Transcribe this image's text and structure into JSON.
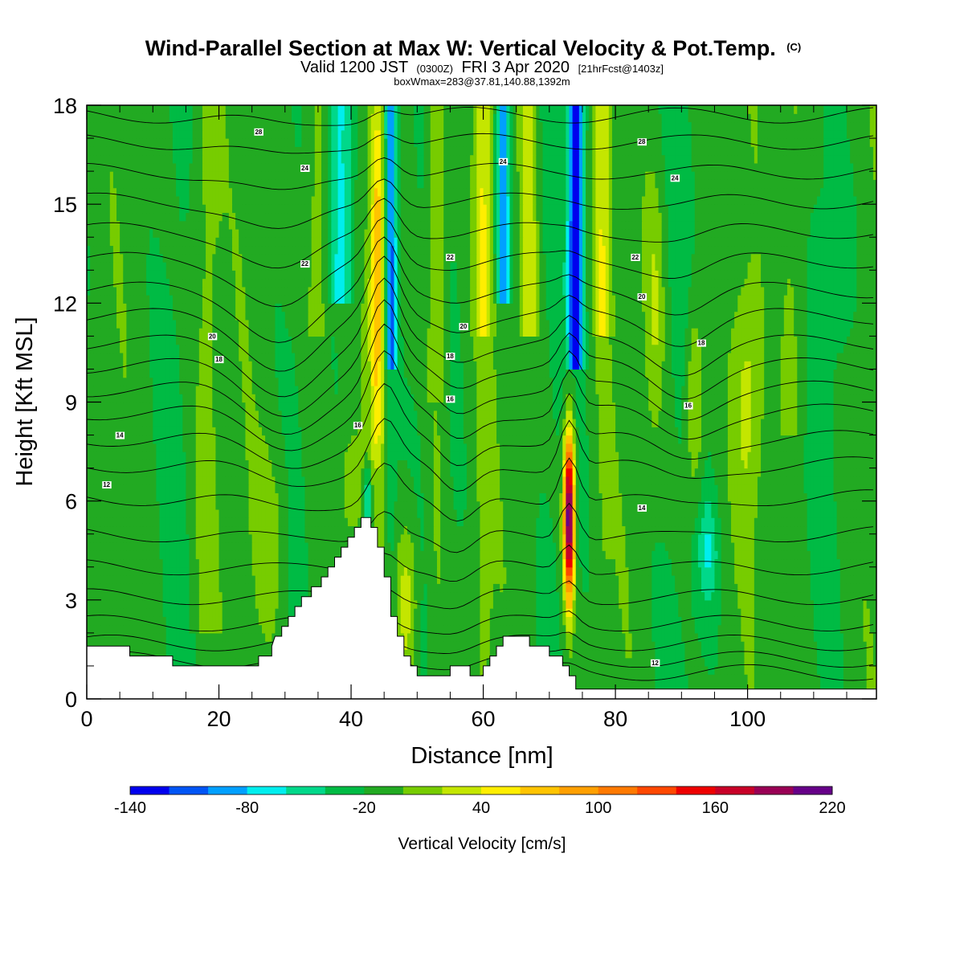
{
  "chart_data": {
    "type": "heatmap",
    "title": "Wind-Parallel Section at Max W: Vertical Velocity & Pot.Temp.",
    "title_mark": "(C)",
    "subtitle": {
      "part1": "Valid 1200 JST",
      "part2": "(0300Z)",
      "part3": "FRI 3 Apr 2020",
      "part4": "[21hrFcst@1403z]"
    },
    "subtitle2": "boxWmax=283@37.81,140.88,1392m",
    "xlabel": "Distance [nm]",
    "ylabel": "Height [Kft MSL]",
    "xlim": [
      0,
      119.5
    ],
    "ylim": [
      0,
      18
    ],
    "x_ticks": [
      0,
      20,
      40,
      60,
      80,
      100
    ],
    "y_ticks": [
      0,
      3,
      6,
      9,
      12,
      15,
      18
    ],
    "colorbar": {
      "title": "Vertical Velocity [cm/s]",
      "min": -140,
      "max": 220,
      "step": 20,
      "labels": [
        "-140",
        "-80",
        "-20",
        "40",
        "100",
        "160",
        "220"
      ],
      "colors": [
        "#0000ee",
        "#0055f5",
        "#00a0ff",
        "#00eeee",
        "#00d88a",
        "#00bb44",
        "#22aa22",
        "#77cc00",
        "#c4e600",
        "#ffee00",
        "#ffc400",
        "#ffa000",
        "#ff7a00",
        "#ff4800",
        "#ee0000",
        "#c80028",
        "#990055",
        "#660088"
      ]
    },
    "terrain": [
      [
        0,
        1.6
      ],
      [
        6.5,
        1.6
      ],
      [
        6.5,
        1.3
      ],
      [
        13,
        1.3
      ],
      [
        13,
        1.0
      ],
      [
        26,
        1.0
      ],
      [
        26,
        1.3
      ],
      [
        28,
        1.3
      ],
      [
        28,
        1.6
      ],
      [
        28.5,
        1.9
      ],
      [
        29.5,
        1.9
      ],
      [
        29.5,
        2.2
      ],
      [
        30.5,
        2.2
      ],
      [
        30.5,
        2.5
      ],
      [
        31.5,
        2.5
      ],
      [
        31.5,
        2.8
      ],
      [
        32.5,
        2.8
      ],
      [
        32.5,
        3.1
      ],
      [
        34,
        3.1
      ],
      [
        34,
        3.4
      ],
      [
        35.5,
        3.4
      ],
      [
        35.5,
        3.7
      ],
      [
        36.5,
        3.7
      ],
      [
        36.5,
        4.0
      ],
      [
        37.5,
        4.0
      ],
      [
        37.5,
        4.3
      ],
      [
        38.5,
        4.3
      ],
      [
        38.5,
        4.6
      ],
      [
        39.5,
        4.6
      ],
      [
        39.5,
        4.9
      ],
      [
        40.5,
        4.9
      ],
      [
        40.5,
        5.2
      ],
      [
        41.5,
        5.2
      ],
      [
        41.5,
        5.5
      ],
      [
        43,
        5.5
      ],
      [
        43,
        5.2
      ],
      [
        44,
        5.2
      ],
      [
        44,
        4.6
      ],
      [
        45,
        4.6
      ],
      [
        45,
        3.7
      ],
      [
        46,
        3.7
      ],
      [
        46,
        2.5
      ],
      [
        47,
        2.5
      ],
      [
        47,
        1.9
      ],
      [
        48,
        1.9
      ],
      [
        48,
        1.3
      ],
      [
        49,
        1.3
      ],
      [
        49,
        1.0
      ],
      [
        50,
        1.0
      ],
      [
        50,
        0.7
      ],
      [
        55,
        0.7
      ],
      [
        55,
        1.0
      ],
      [
        58,
        1.0
      ],
      [
        58,
        0.7
      ],
      [
        60,
        0.7
      ],
      [
        60,
        1.0
      ],
      [
        61,
        1.0
      ],
      [
        61,
        1.3
      ],
      [
        62,
        1.3
      ],
      [
        62,
        1.6
      ],
      [
        63,
        1.6
      ],
      [
        63,
        1.9
      ],
      [
        67,
        1.9
      ],
      [
        67,
        1.6
      ],
      [
        70,
        1.6
      ],
      [
        70,
        1.3
      ],
      [
        72,
        1.3
      ],
      [
        72,
        1.0
      ],
      [
        73,
        1.0
      ],
      [
        73,
        0.7
      ],
      [
        74,
        0.7
      ],
      [
        74,
        0.3
      ],
      [
        119.5,
        0.3
      ]
    ],
    "contour_labels": [
      "28",
      "24",
      "22",
      "20",
      "18",
      "16",
      "14",
      "12"
    ]
  }
}
